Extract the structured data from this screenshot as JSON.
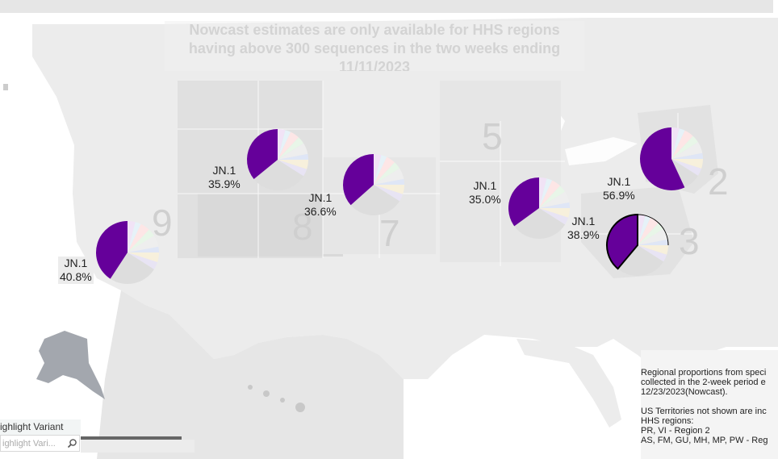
{
  "note": {
    "line1": "Nowcast estimates are only available for HHS regions",
    "line2": "having above 300 sequences in the two weeks ending",
    "line3": "11/11/2023"
  },
  "region_numbers": [
    "9",
    "8",
    "7",
    "5",
    "2",
    "3"
  ],
  "regions": [
    {
      "variant": "JN.1",
      "percent": "40.8%",
      "share": 0.408,
      "highlighted": false,
      "boxed": true
    },
    {
      "variant": "JN.1",
      "percent": "35.9%",
      "share": 0.359,
      "highlighted": false,
      "boxed": false
    },
    {
      "variant": "JN.1",
      "percent": "36.6%",
      "share": 0.366,
      "highlighted": false,
      "boxed": false
    },
    {
      "variant": "JN.1",
      "percent": "35.0%",
      "share": 0.35,
      "highlighted": false,
      "boxed": false
    },
    {
      "variant": "JN.1",
      "percent": "56.9%",
      "share": 0.569,
      "highlighted": false,
      "boxed": false
    },
    {
      "variant": "JN.1",
      "percent": "38.9%",
      "share": 0.389,
      "highlighted": true,
      "boxed": false
    }
  ],
  "legend_note": {
    "line1": "Regional proportions from speci",
    "line2": "collected in the 2-week period e",
    "line3": "12/23/2023(Nowcast).",
    "line4": "US Territories not shown are inc",
    "line5": "HHS regions:",
    "line6": "PR, VI - Region 2",
    "line7": "AS, FM, GU, MH, MP, PW - Reg"
  },
  "highlight": {
    "title": "ighlight Variant",
    "placeholder": "ighlight Vari..."
  },
  "colors": {
    "jn1": "#65009a",
    "map_land": "#ececec",
    "region_shade": "#e0e0e0"
  }
}
